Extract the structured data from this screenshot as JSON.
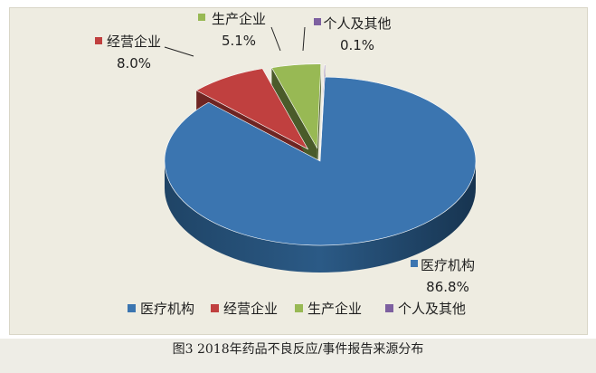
{
  "chart_data": {
    "type": "pie",
    "style": "3d-exploded",
    "categories": [
      "医疗机构",
      "经营企业",
      "生产企业",
      "个人及其他"
    ],
    "values": [
      86.8,
      8.0,
      5.1,
      0.1
    ],
    "value_labels": [
      "86.8%",
      "8.0%",
      "5.1%",
      "0.1%"
    ],
    "colors": [
      "#3b75b0",
      "#c0403f",
      "#98b954",
      "#7d60a0"
    ],
    "legend_position": "bottom"
  },
  "caption": "图3 2018年药品不良反应/事件报告来源分布"
}
